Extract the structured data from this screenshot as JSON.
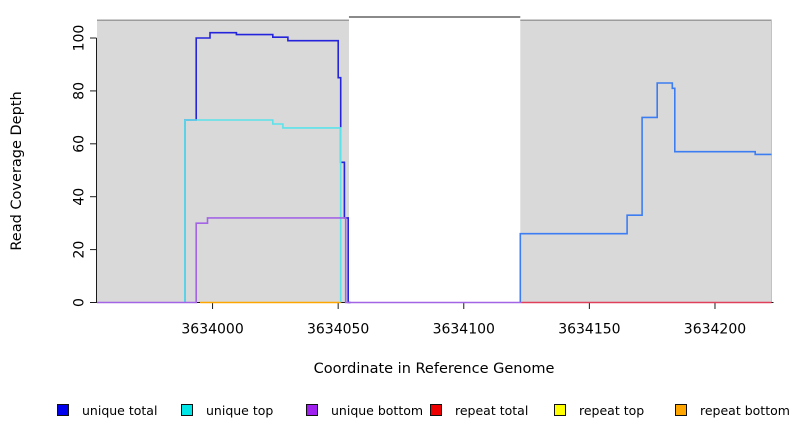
{
  "figure": {
    "background": "#ffffff",
    "panel_gray": "#d9d9d9",
    "panel_gray_border": "#9c9c9c",
    "gap_top_line_color": "#8a8a8a",
    "axis_color": "#1a1a1a"
  },
  "chart_data": {
    "type": "line",
    "title": "",
    "xlabel": "Coordinate in Reference Genome",
    "ylabel": "Read Coverage Depth",
    "xlim": [
      3633954,
      3634222.5
    ],
    "ylim": [
      0,
      107
    ],
    "x_ticks": [
      3634000,
      3634050,
      3634100,
      3634150,
      3634200
    ],
    "y_ticks": [
      0,
      20,
      40,
      60,
      80,
      100
    ],
    "grid": false,
    "legend_position": "bottom",
    "shaded_regions": [
      [
        3633954,
        3634054.3
      ],
      [
        3634122.5,
        3634222.5
      ]
    ],
    "series": [
      {
        "name": "unique total",
        "legend_color": "#0000ee",
        "segments": [
          {
            "color": "#2424dc",
            "points": [
              [
                3633989,
                0
              ],
              [
                3633989,
                69
              ],
              [
                3633993.5,
                69
              ],
              [
                3633993.5,
                100
              ],
              [
                3633999,
                100
              ],
              [
                3633999,
                102
              ],
              [
                3634009.5,
                102
              ],
              [
                3634009.5,
                101.3
              ],
              [
                3634024,
                101.3
              ],
              [
                3634024,
                100.3
              ],
              [
                3634030,
                100.3
              ],
              [
                3634030,
                99
              ],
              [
                3634050,
                99
              ],
              [
                3634050,
                85
              ],
              [
                3634051,
                85
              ],
              [
                3634051,
                53
              ],
              [
                3634052.5,
                53
              ],
              [
                3634052.5,
                32
              ],
              [
                3634054,
                32
              ],
              [
                3634054,
                0
              ],
              [
                3634055,
                0
              ]
            ]
          },
          {
            "color": "#3c7df2",
            "points": [
              [
                3634122.5,
                0
              ],
              [
                3634122.5,
                26
              ],
              [
                3634165,
                26
              ],
              [
                3634165,
                33
              ],
              [
                3634171,
                33
              ],
              [
                3634171,
                70
              ],
              [
                3634177,
                70
              ],
              [
                3634177,
                83
              ],
              [
                3634183,
                83
              ],
              [
                3634183,
                81
              ],
              [
                3634184,
                81
              ],
              [
                3634184,
                57
              ],
              [
                3634216,
                57
              ],
              [
                3634216,
                56
              ],
              [
                3634222.5,
                56
              ]
            ]
          }
        ]
      },
      {
        "name": "unique top",
        "legend_color": "#00e6e6",
        "segments": [
          {
            "color": "#5ce2ea",
            "points": [
              [
                3633989,
                0
              ],
              [
                3633989,
                69
              ],
              [
                3634024,
                69
              ],
              [
                3634024,
                67.5
              ],
              [
                3634028,
                67.5
              ],
              [
                3634028,
                66
              ],
              [
                3634051,
                66
              ],
              [
                3634051,
                0
              ]
            ]
          }
        ]
      },
      {
        "name": "unique bottom",
        "legend_color": "#a020f0",
        "segments": [
          {
            "color": "#a365e6",
            "points": [
              [
                3633954,
                0
              ],
              [
                3633993.5,
                0
              ],
              [
                3633993.5,
                30
              ],
              [
                3633998,
                30
              ],
              [
                3633998,
                32
              ],
              [
                3634053,
                32
              ],
              [
                3634053,
                0
              ],
              [
                3634123,
                0
              ]
            ]
          }
        ]
      },
      {
        "name": "repeat total",
        "legend_color": "#ee0000",
        "segments": [
          {
            "color": "#e0405a",
            "points": [
              [
                3634123,
                0
              ],
              [
                3634222.5,
                0
              ]
            ]
          }
        ]
      },
      {
        "name": "repeat top",
        "legend_color": "#ffff00",
        "segments": []
      },
      {
        "name": "repeat bottom",
        "legend_color": "#ffa500",
        "segments": [
          {
            "color": "#ffa500",
            "points": [
              [
                3633995,
                0
              ],
              [
                3634051,
                0
              ]
            ]
          }
        ]
      }
    ]
  }
}
